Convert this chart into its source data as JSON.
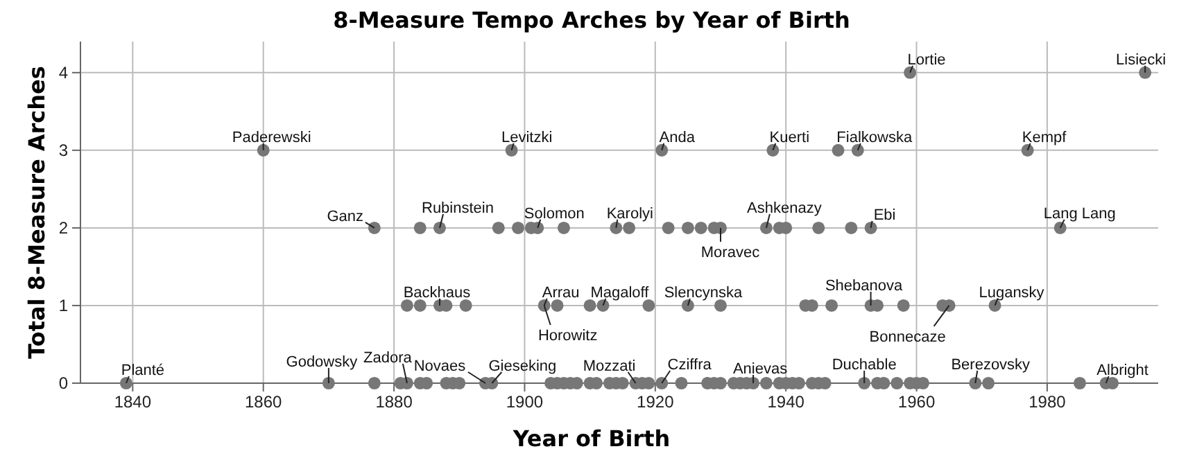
{
  "chart_data": {
    "type": "scatter",
    "title": "8-Measure Tempo Arches by Year of Birth",
    "xlabel": "Year of Birth",
    "ylabel": "Total 8-Measure Arches",
    "xlim": [
      1832,
      1997
    ],
    "xticks": [
      1840,
      1860,
      1880,
      1900,
      1920,
      1940,
      1960,
      1980
    ],
    "ylim": [
      0,
      4.4
    ],
    "yticks": [
      0,
      1,
      2,
      3,
      4
    ],
    "grid": true,
    "marker": "circle",
    "series": [
      {
        "color": "#777777",
        "x": [
          1959,
          1995,
          1860,
          1898,
          1921,
          1938,
          1948,
          1951,
          1977,
          1877,
          1884,
          1887,
          1896,
          1899,
          1901,
          1902,
          1906,
          1914,
          1916,
          1922,
          1925,
          1927,
          1929,
          1930,
          1937,
          1939,
          1940,
          1945,
          1950,
          1953,
          1982,
          1882,
          1884,
          1887,
          1888,
          1891,
          1903,
          1905,
          1910,
          1912,
          1919,
          1925,
          1930,
          1943,
          1944,
          1947,
          1953,
          1954,
          1958,
          1964,
          1965,
          1972,
          1839,
          1870,
          1877,
          1881,
          1882,
          1884,
          1885,
          1888,
          1889,
          1890,
          1894,
          1895,
          1904,
          1905,
          1906,
          1907,
          1908,
          1910,
          1911,
          1913,
          1914,
          1915,
          1917,
          1918,
          1919,
          1921,
          1924,
          1928,
          1929,
          1930,
          1932,
          1933,
          1934,
          1935,
          1937,
          1939,
          1940,
          1941,
          1942,
          1944,
          1945,
          1946,
          1952,
          1954,
          1955,
          1957,
          1959,
          1960,
          1961,
          1969,
          1971,
          1985,
          1989,
          1990
        ],
        "values": [
          4,
          4,
          3,
          3,
          3,
          3,
          3,
          3,
          3,
          2,
          2,
          2,
          2,
          2,
          2,
          2,
          2,
          2,
          2,
          2,
          2,
          2,
          2,
          2,
          2,
          2,
          2,
          2,
          2,
          2,
          2,
          1,
          1,
          1,
          1,
          1,
          1,
          1,
          1,
          1,
          1,
          1,
          1,
          1,
          1,
          1,
          1,
          1,
          1,
          1,
          1,
          1,
          0,
          0,
          0,
          0,
          0,
          0,
          0,
          0,
          0,
          0,
          0,
          0,
          0,
          0,
          0,
          0,
          0,
          0,
          0,
          0,
          0,
          0,
          0,
          0,
          0,
          0,
          0,
          0,
          0,
          0,
          0,
          0,
          0,
          0,
          0,
          0,
          0,
          0,
          0,
          0,
          0,
          0,
          0,
          0,
          0,
          0,
          0,
          0,
          0,
          0,
          0,
          0,
          0,
          0
        ]
      }
    ],
    "annotations": [
      {
        "text": "Planté",
        "x": 1839,
        "y": 0
      },
      {
        "text": "Godowsky",
        "x": 1870,
        "y": 0
      },
      {
        "text": "Zadora",
        "x": 1882,
        "y": 0
      },
      {
        "text": "Novaes",
        "x": 1894,
        "y": 0
      },
      {
        "text": "Gieseking",
        "x": 1895,
        "y": 0
      },
      {
        "text": "Mozzati",
        "x": 1917,
        "y": 0
      },
      {
        "text": "Cziffra",
        "x": 1921,
        "y": 0
      },
      {
        "text": "Anievas",
        "x": 1935,
        "y": 0
      },
      {
        "text": "Duchable",
        "x": 1952,
        "y": 0
      },
      {
        "text": "Berezovsky",
        "x": 1969,
        "y": 0
      },
      {
        "text": "Albright",
        "x": 1989,
        "y": 0
      },
      {
        "text": "Backhaus",
        "x": 1887,
        "y": 1
      },
      {
        "text": "Arrau",
        "x": 1903,
        "y": 1
      },
      {
        "text": "Horowitz",
        "x": 1903,
        "y": 1
      },
      {
        "text": "Magaloff",
        "x": 1912,
        "y": 1
      },
      {
        "text": "Slencynska",
        "x": 1925,
        "y": 1
      },
      {
        "text": "Shebanova",
        "x": 1953,
        "y": 1
      },
      {
        "text": "Bonnecaze",
        "x": 1965,
        "y": 1
      },
      {
        "text": "Lugansky",
        "x": 1972,
        "y": 1
      },
      {
        "text": "Ganz",
        "x": 1877,
        "y": 2
      },
      {
        "text": "Rubinstein",
        "x": 1887,
        "y": 2
      },
      {
        "text": "Solomon",
        "x": 1902,
        "y": 2
      },
      {
        "text": "Karolyi",
        "x": 1914,
        "y": 2
      },
      {
        "text": "Moravec",
        "x": 1930,
        "y": 2
      },
      {
        "text": "Ashkenazy",
        "x": 1937,
        "y": 2
      },
      {
        "text": "Ebi",
        "x": 1953,
        "y": 2
      },
      {
        "text": "Lang Lang",
        "x": 1982,
        "y": 2
      },
      {
        "text": "Paderewski",
        "x": 1860,
        "y": 3
      },
      {
        "text": "Levitzki",
        "x": 1898,
        "y": 3
      },
      {
        "text": "Anda",
        "x": 1921,
        "y": 3
      },
      {
        "text": "Kuerti",
        "x": 1938,
        "y": 3
      },
      {
        "text": "Fialkowska",
        "x": 1951,
        "y": 3
      },
      {
        "text": "Kempf",
        "x": 1977,
        "y": 3
      },
      {
        "text": "Lortie",
        "x": 1959,
        "y": 4
      },
      {
        "text": "Lisiecki",
        "x": 1995,
        "y": 4
      }
    ]
  }
}
